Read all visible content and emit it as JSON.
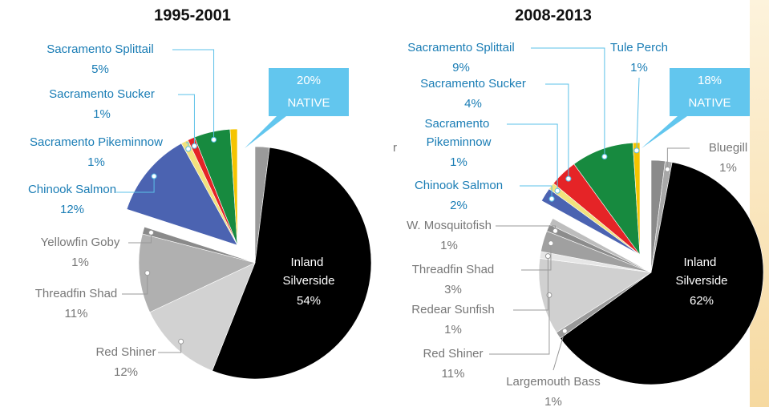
{
  "chart_data": [
    {
      "type": "pie",
      "title": "1995-2001",
      "categories": [
        null,
        "Inland Silverside",
        "Red Shiner",
        "Threadfin Shad",
        "Yellowfin Goby",
        "Chinook Salmon",
        "Sacramento Pikeminnow",
        "Sacramento Sucker",
        "Sacramento Splittail",
        null
      ],
      "values": [
        2,
        54,
        12,
        11,
        1,
        12,
        1,
        1,
        5,
        1
      ],
      "value_labels": [
        null,
        "54%",
        "12%",
        "11%",
        "1%",
        "12%",
        "1%",
        "1%",
        "5%",
        null
      ],
      "colors": [
        "#9a9a9a",
        "#000000",
        "#d2d2d2",
        "#b0b0b0",
        "#8a8a8a",
        "#4b63b1",
        "#f2e27d",
        "#e52427",
        "#178a3f",
        "#f5c400"
      ],
      "explode": [
        false,
        false,
        false,
        false,
        false,
        true,
        true,
        true,
        true,
        true
      ],
      "callout": [
        "20%",
        "NATIVE"
      ]
    },
    {
      "type": "pie",
      "title": "2008-2013",
      "categories": [
        null,
        "Bluegill",
        "Inland Silverside",
        "Largemouth Bass",
        "Red Shiner",
        "Redear Sunfish",
        "Threadfin Shad",
        "W. Mosquitofish",
        null,
        "Chinook Salmon",
        "Sacramento Pikeminnow",
        "Sacramento Sucker",
        "Sacramento Splittail",
        "Tule Perch"
      ],
      "values": [
        2,
        1,
        62,
        1,
        11,
        1,
        3,
        1,
        1,
        2,
        1,
        4,
        9,
        1
      ],
      "value_labels": [
        null,
        "1%",
        "62%",
        "1%",
        "11%",
        "1%",
        "3%",
        "1%",
        null,
        "2%",
        "1%",
        "4%",
        "9%",
        "1%"
      ],
      "colors": [
        "#8a8a8a",
        "#a8a8a8",
        "#000000",
        "#9a9a9a",
        "#d0d0d0",
        "#e6e6e6",
        "#a0a0a0",
        "#8c8c8c",
        "#bdbdbd",
        "#4b63b1",
        "#f2e27d",
        "#e52427",
        "#178a3f",
        "#f5c400"
      ],
      "explode": [
        false,
        false,
        false,
        false,
        false,
        false,
        false,
        false,
        false,
        true,
        true,
        true,
        true,
        true
      ],
      "callout": [
        "18%",
        "NATIVE"
      ],
      "stray_label": "r"
    }
  ]
}
